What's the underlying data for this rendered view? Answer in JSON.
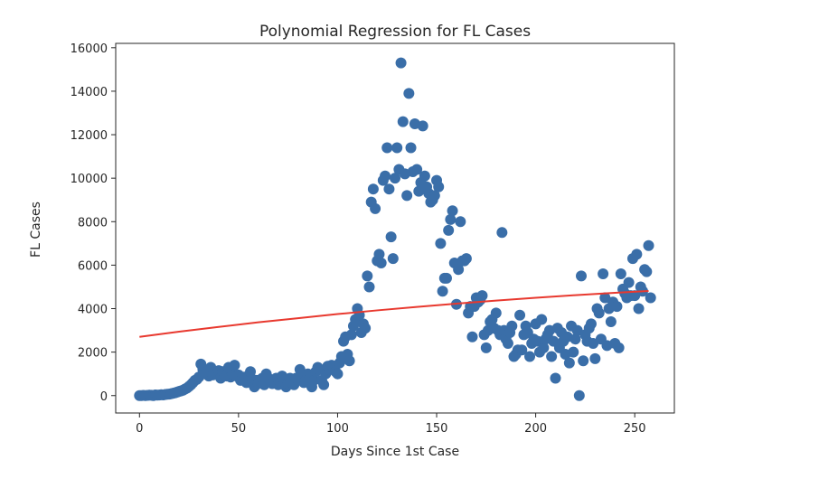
{
  "chart_data": {
    "type": "scatter",
    "title": "Polynomial Regression for FL Cases",
    "xlabel": "Days Since 1st Case",
    "ylabel": "FL Cases",
    "xlim": [
      -12,
      270
    ],
    "ylim": [
      -800,
      16200
    ],
    "x_ticks": [
      0,
      50,
      100,
      150,
      200,
      250
    ],
    "y_ticks": [
      0,
      2000,
      4000,
      6000,
      8000,
      10000,
      12000,
      14000,
      16000
    ],
    "grid": false,
    "colors": {
      "points": "#3a6ea8",
      "fit_line": "#e8392f",
      "axes": "#262626"
    },
    "series": [
      {
        "kind": "scatter",
        "points": [
          [
            0,
            0
          ],
          [
            1,
            0
          ],
          [
            2,
            10
          ],
          [
            3,
            0
          ],
          [
            4,
            10
          ],
          [
            5,
            20
          ],
          [
            6,
            15
          ],
          [
            7,
            0
          ],
          [
            8,
            30
          ],
          [
            9,
            20
          ],
          [
            10,
            25
          ],
          [
            11,
            40
          ],
          [
            12,
            30
          ],
          [
            13,
            50
          ],
          [
            14,
            60
          ],
          [
            15,
            70
          ],
          [
            16,
            90
          ],
          [
            17,
            110
          ],
          [
            18,
            130
          ],
          [
            19,
            160
          ],
          [
            20,
            190
          ],
          [
            21,
            220
          ],
          [
            22,
            250
          ],
          [
            23,
            300
          ],
          [
            24,
            350
          ],
          [
            25,
            420
          ],
          [
            26,
            500
          ],
          [
            27,
            600
          ],
          [
            28,
            700
          ],
          [
            29,
            750
          ],
          [
            30,
            850
          ],
          [
            31,
            1450
          ],
          [
            32,
            1200
          ],
          [
            33,
            1000
          ],
          [
            34,
            1100
          ],
          [
            35,
            900
          ],
          [
            36,
            1300
          ],
          [
            37,
            950
          ],
          [
            38,
            1050
          ],
          [
            39,
            1000
          ],
          [
            40,
            1150
          ],
          [
            41,
            800
          ],
          [
            42,
            1100
          ],
          [
            43,
            950
          ],
          [
            44,
            900
          ],
          [
            45,
            1300
          ],
          [
            46,
            850
          ],
          [
            47,
            1000
          ],
          [
            48,
            1400
          ],
          [
            49,
            900
          ],
          [
            50,
            950
          ],
          [
            51,
            700
          ],
          [
            52,
            800
          ],
          [
            53,
            850
          ],
          [
            54,
            600
          ],
          [
            55,
            900
          ],
          [
            56,
            1100
          ],
          [
            57,
            750
          ],
          [
            58,
            400
          ],
          [
            59,
            700
          ],
          [
            60,
            550
          ],
          [
            61,
            650
          ],
          [
            62,
            800
          ],
          [
            63,
            500
          ],
          [
            64,
            1000
          ],
          [
            65,
            800
          ],
          [
            66,
            700
          ],
          [
            67,
            550
          ],
          [
            68,
            650
          ],
          [
            69,
            800
          ],
          [
            70,
            500
          ],
          [
            71,
            600
          ],
          [
            72,
            900
          ],
          [
            73,
            700
          ],
          [
            74,
            400
          ],
          [
            75,
            550
          ],
          [
            76,
            800
          ],
          [
            77,
            600
          ],
          [
            78,
            500
          ],
          [
            79,
            800
          ],
          [
            80,
            700
          ],
          [
            81,
            1200
          ],
          [
            82,
            900
          ],
          [
            83,
            600
          ],
          [
            84,
            700
          ],
          [
            85,
            1000
          ],
          [
            86,
            800
          ],
          [
            87,
            400
          ],
          [
            88,
            700
          ],
          [
            89,
            1100
          ],
          [
            90,
            1300
          ],
          [
            91,
            1200
          ],
          [
            92,
            700
          ],
          [
            93,
            500
          ],
          [
            94,
            1000
          ],
          [
            95,
            1350
          ],
          [
            96,
            1200
          ],
          [
            97,
            1400
          ],
          [
            98,
            1300
          ],
          [
            99,
            1100
          ],
          [
            100,
            1000
          ],
          [
            101,
            1500
          ],
          [
            102,
            1800
          ],
          [
            103,
            2500
          ],
          [
            104,
            2700
          ],
          [
            105,
            1900
          ],
          [
            106,
            1600
          ],
          [
            107,
            2800
          ],
          [
            108,
            3200
          ],
          [
            109,
            3500
          ],
          [
            110,
            4000
          ],
          [
            111,
            3700
          ],
          [
            112,
            2900
          ],
          [
            113,
            3300
          ],
          [
            114,
            3100
          ],
          [
            115,
            5500
          ],
          [
            116,
            5000
          ],
          [
            117,
            8900
          ],
          [
            118,
            9500
          ],
          [
            119,
            8600
          ],
          [
            120,
            6200
          ],
          [
            121,
            6500
          ],
          [
            122,
            6100
          ],
          [
            123,
            9900
          ],
          [
            124,
            10100
          ],
          [
            125,
            11400
          ],
          [
            126,
            9500
          ],
          [
            127,
            7300
          ],
          [
            128,
            6300
          ],
          [
            129,
            10000
          ],
          [
            130,
            11400
          ],
          [
            131,
            10400
          ],
          [
            132,
            15300
          ],
          [
            133,
            12600
          ],
          [
            134,
            10200
          ],
          [
            135,
            9200
          ],
          [
            136,
            13900
          ],
          [
            137,
            11400
          ],
          [
            138,
            10300
          ],
          [
            139,
            12500
          ],
          [
            140,
            10400
          ],
          [
            141,
            9400
          ],
          [
            142,
            9800
          ],
          [
            143,
            12400
          ],
          [
            144,
            10100
          ],
          [
            145,
            9600
          ],
          [
            146,
            9300
          ],
          [
            147,
            8900
          ],
          [
            148,
            9000
          ],
          [
            149,
            9200
          ],
          [
            150,
            9900
          ],
          [
            151,
            9600
          ],
          [
            152,
            7000
          ],
          [
            153,
            4800
          ],
          [
            154,
            5400
          ],
          [
            155,
            5400
          ],
          [
            156,
            7600
          ],
          [
            157,
            8100
          ],
          [
            158,
            8500
          ],
          [
            159,
            6100
          ],
          [
            160,
            4200
          ],
          [
            161,
            5800
          ],
          [
            162,
            8000
          ],
          [
            163,
            6200
          ],
          [
            164,
            6200
          ],
          [
            165,
            6300
          ],
          [
            166,
            3800
          ],
          [
            167,
            4100
          ],
          [
            168,
            2700
          ],
          [
            169,
            4100
          ],
          [
            170,
            4500
          ],
          [
            171,
            4300
          ],
          [
            172,
            4400
          ],
          [
            173,
            4600
          ],
          [
            174,
            2800
          ],
          [
            175,
            2200
          ],
          [
            176,
            3000
          ],
          [
            177,
            3400
          ],
          [
            178,
            3500
          ],
          [
            179,
            3100
          ],
          [
            180,
            3800
          ],
          [
            181,
            3000
          ],
          [
            182,
            2800
          ],
          [
            183,
            7500
          ],
          [
            184,
            3000
          ],
          [
            185,
            2600
          ],
          [
            186,
            2400
          ],
          [
            187,
            2900
          ],
          [
            188,
            3200
          ],
          [
            189,
            1800
          ],
          [
            190,
            1900
          ],
          [
            191,
            2100
          ],
          [
            192,
            3700
          ],
          [
            193,
            2100
          ],
          [
            194,
            2800
          ],
          [
            195,
            3200
          ],
          [
            196,
            2900
          ],
          [
            197,
            1800
          ],
          [
            198,
            2400
          ],
          [
            199,
            2600
          ],
          [
            200,
            3300
          ],
          [
            201,
            2500
          ],
          [
            202,
            2000
          ],
          [
            203,
            3500
          ],
          [
            204,
            2200
          ],
          [
            205,
            2600
          ],
          [
            206,
            2800
          ],
          [
            207,
            3000
          ],
          [
            208,
            1800
          ],
          [
            209,
            2500
          ],
          [
            210,
            800
          ],
          [
            211,
            3100
          ],
          [
            212,
            2200
          ],
          [
            213,
            2900
          ],
          [
            214,
            2500
          ],
          [
            215,
            1900
          ],
          [
            216,
            2700
          ],
          [
            217,
            1500
          ],
          [
            218,
            3200
          ],
          [
            219,
            2000
          ],
          [
            220,
            2600
          ],
          [
            221,
            3000
          ],
          [
            222,
            0
          ],
          [
            223,
            5500
          ],
          [
            224,
            1600
          ],
          [
            225,
            2800
          ],
          [
            226,
            2500
          ],
          [
            227,
            3100
          ],
          [
            228,
            3300
          ],
          [
            229,
            2400
          ],
          [
            230,
            1700
          ],
          [
            231,
            4000
          ],
          [
            232,
            3800
          ],
          [
            233,
            2600
          ],
          [
            234,
            5600
          ],
          [
            235,
            4500
          ],
          [
            236,
            2300
          ],
          [
            237,
            4000
          ],
          [
            238,
            3400
          ],
          [
            239,
            4300
          ],
          [
            240,
            2400
          ],
          [
            241,
            4100
          ],
          [
            242,
            2200
          ],
          [
            243,
            5600
          ],
          [
            244,
            4900
          ],
          [
            245,
            4700
          ],
          [
            246,
            4500
          ],
          [
            247,
            5200
          ],
          [
            248,
            4600
          ],
          [
            249,
            6300
          ],
          [
            250,
            4600
          ],
          [
            251,
            6500
          ],
          [
            252,
            4000
          ],
          [
            253,
            5000
          ],
          [
            254,
            4800
          ],
          [
            255,
            5800
          ],
          [
            256,
            5700
          ],
          [
            257,
            6900
          ],
          [
            258,
            4500
          ]
        ]
      },
      {
        "kind": "line",
        "x": [
          0,
          20,
          40,
          60,
          80,
          100,
          120,
          140,
          160,
          180,
          200,
          220,
          240,
          257
        ],
        "y": [
          2700,
          2940,
          3160,
          3370,
          3560,
          3750,
          3920,
          4080,
          4230,
          4370,
          4500,
          4620,
          4730,
          4810
        ]
      }
    ]
  }
}
